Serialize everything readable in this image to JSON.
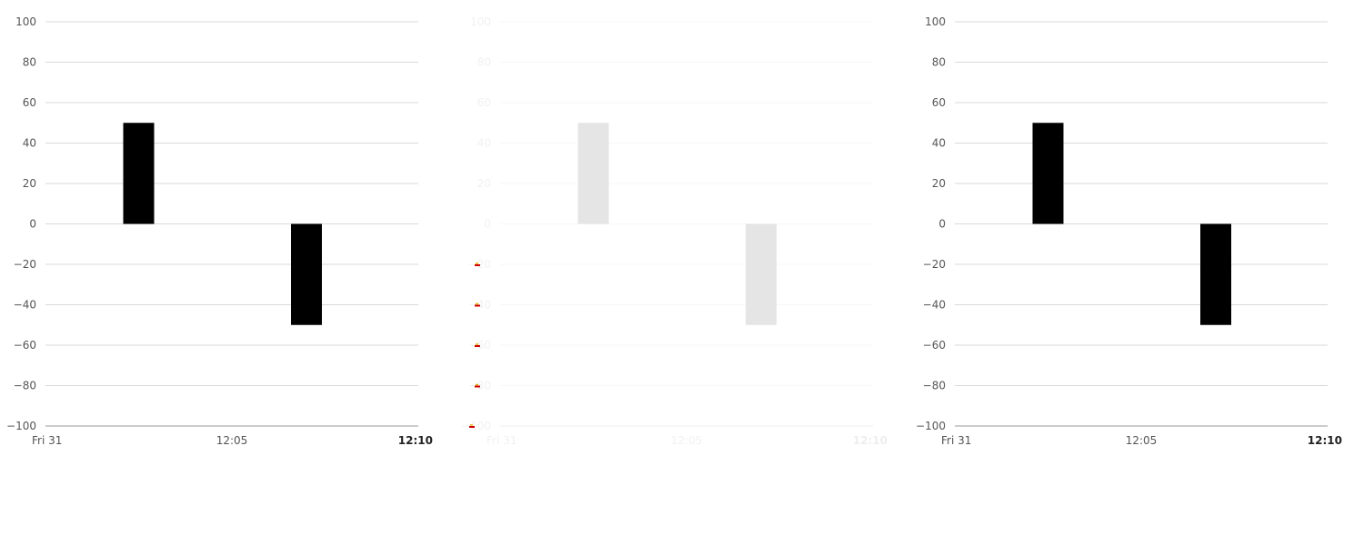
{
  "chart_data": [
    {
      "type": "bar",
      "x": [
        "12:02:30",
        "12:07:00"
      ],
      "values": [
        50,
        -50
      ],
      "ylim": [
        -100,
        100
      ],
      "yticks": [
        100,
        80,
        60,
        40,
        20,
        0,
        -20,
        -40,
        -60,
        -80,
        -100
      ],
      "ytick_labels": [
        "100",
        "80",
        "60",
        "40",
        "20",
        "0",
        "−20",
        "−40",
        "−60",
        "−80",
        "−100"
      ],
      "xticks": [
        {
          "label": "Fri 31",
          "time": "12:00",
          "bold": false
        },
        {
          "label": "12:05",
          "time": "12:05",
          "bold": false
        },
        {
          "label": "12:10",
          "time": "12:10",
          "bold": true
        }
      ],
      "xlim": [
        "12:00",
        "12:10"
      ],
      "grid": true,
      "bar_color": "#000000",
      "gridline_color": "#d9d9d9",
      "axis_color": "#bbbbbb"
    },
    {
      "type": "bar",
      "x": [
        "12:02:30",
        "12:07:00"
      ],
      "values": [
        50,
        -50
      ],
      "ylim": [
        -100,
        100
      ],
      "yticks": [
        100,
        80,
        60,
        40,
        20,
        0,
        -20,
        -40,
        -60,
        -80,
        -100
      ],
      "ytick_labels": [
        "100",
        "80",
        "60",
        "40",
        "20",
        "0",
        "−20",
        "−40",
        "−60",
        "−80",
        "−100"
      ],
      "xticks": [
        {
          "label": "Fri 31",
          "time": "12:00",
          "bold": false
        },
        {
          "label": "12:05",
          "time": "12:05",
          "bold": false
        },
        {
          "label": "12:10",
          "time": "12:10",
          "bold": true
        }
      ],
      "xlim": [
        "12:00",
        "12:10"
      ],
      "grid": true,
      "faded": true,
      "bar_color": "#e5e5e5",
      "gridline_color": "#f7f7f7",
      "axis_color": "#f3f3f3",
      "marker_color": "#cc0000",
      "marker_accent": "#e0b000"
    },
    {
      "type": "bar",
      "x": [
        "12:02:30",
        "12:07:00"
      ],
      "values": [
        50,
        -50
      ],
      "ylim": [
        -100,
        100
      ],
      "yticks": [
        100,
        80,
        60,
        40,
        20,
        0,
        -20,
        -40,
        -60,
        -80,
        -100
      ],
      "ytick_labels": [
        "100",
        "80",
        "60",
        "40",
        "20",
        "0",
        "−20",
        "−40",
        "−60",
        "−80",
        "−100"
      ],
      "xticks": [
        {
          "label": "Fri 31",
          "time": "12:00",
          "bold": false
        },
        {
          "label": "12:05",
          "time": "12:05",
          "bold": false
        },
        {
          "label": "12:10",
          "time": "12:10",
          "bold": true
        }
      ],
      "xlim": [
        "12:00",
        "12:10"
      ],
      "grid": true,
      "bar_color": "#000000",
      "gridline_color": "#d9d9d9",
      "axis_color": "#bbbbbb"
    }
  ]
}
